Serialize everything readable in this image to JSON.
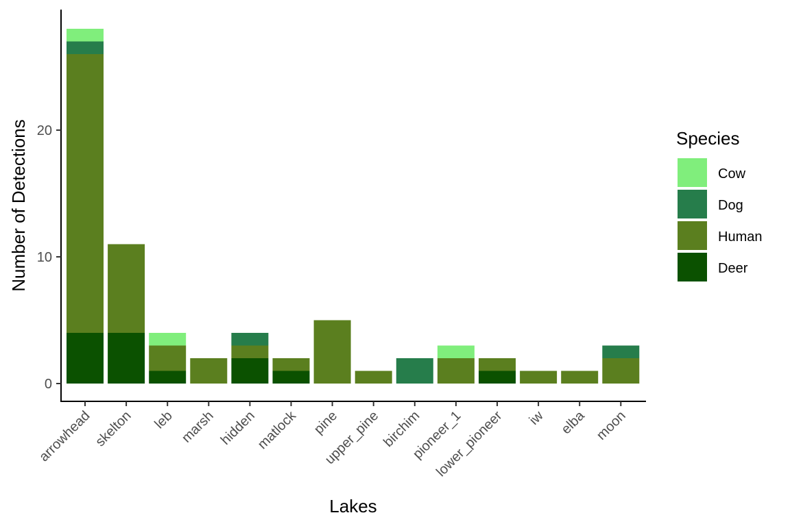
{
  "chart_data": {
    "type": "bar",
    "stacked": true,
    "title": "",
    "xlabel": "Lakes",
    "ylabel": "Number of Detections",
    "ylim": [
      0,
      28
    ],
    "yticks": [
      0,
      10,
      20
    ],
    "grid": false,
    "legend_position": "right",
    "legend_title": "Species",
    "categories": [
      "arrowhead",
      "skelton",
      "leb",
      "marsh",
      "hidden",
      "matlock",
      "pine",
      "upper_pine",
      "birchim",
      "pioneer_1",
      "lower_pioneer",
      "iw",
      "elba",
      "moon"
    ],
    "series": [
      {
        "name": "Deer",
        "color": "#0b5100",
        "values": [
          4,
          4,
          1,
          0,
          2,
          1,
          0,
          0,
          0,
          0,
          1,
          0,
          0,
          0
        ]
      },
      {
        "name": "Human",
        "color": "#5b7f1f",
        "values": [
          22,
          7,
          2,
          2,
          1,
          1,
          5,
          1,
          0,
          2,
          1,
          1,
          1,
          2
        ]
      },
      {
        "name": "Dog",
        "color": "#267d4b",
        "values": [
          1,
          0,
          0,
          0,
          1,
          0,
          0,
          0,
          2,
          0,
          0,
          0,
          0,
          1
        ]
      },
      {
        "name": "Cow",
        "color": "#80ee7c",
        "values": [
          1,
          0,
          1,
          0,
          0,
          0,
          0,
          0,
          0,
          1,
          0,
          0,
          0,
          0
        ]
      }
    ],
    "legend_order": [
      "Cow",
      "Dog",
      "Human",
      "Deer"
    ]
  }
}
